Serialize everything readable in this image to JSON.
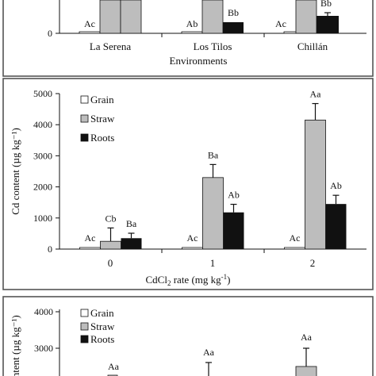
{
  "panels": {
    "top": {
      "xlabel": "Environments",
      "categories": [
        "La Serena",
        "Los Tilos",
        "Chillán"
      ],
      "letters": [
        [
          "Ac",
          "",
          ""
        ],
        [
          "Ab",
          "",
          "Bb"
        ],
        [
          "Ac",
          "",
          "Bb"
        ]
      ]
    },
    "middle": {
      "ylabel": "Cd content (µg kg⁻¹)",
      "xlabel_main": "CdCl",
      "xlabel_sub": "2",
      "xlabel_rest": " rate (mg kg",
      "xlabel_sup": "-1",
      "xlabel_end": ")",
      "legend": [
        "Grain",
        "Straw",
        "Roots"
      ],
      "yticks": [
        "0",
        "1000",
        "2000",
        "3000",
        "4000",
        "5000"
      ],
      "categories": [
        "0",
        "1",
        "2"
      ],
      "letters": [
        [
          "Ac",
          "Cb",
          "Ba"
        ],
        [
          "Ac",
          "Ba",
          "Ab"
        ],
        [
          "Ac",
          "Aa",
          "Ab"
        ]
      ]
    },
    "bottom": {
      "ylabel": "ontent (µg kg⁻¹)",
      "legend": [
        "Grain",
        "Straw",
        "Roots"
      ],
      "yticks": [
        "3000",
        "4000"
      ],
      "letters": [
        "Aa",
        "Aa",
        "Aa"
      ]
    }
  },
  "colors": {
    "grain": "#ffffff",
    "straw": "#bdbdbd",
    "roots": "#111111"
  },
  "chart_data": [
    {
      "type": "bar",
      "categories": [
        "La Serena",
        "Los Tilos",
        "Chillán"
      ],
      "series": [
        {
          "name": "Grain",
          "values": [
            15,
            15,
            15
          ]
        },
        {
          "name": "Straw",
          "values": [
            null,
            null,
            null
          ]
        },
        {
          "name": "Roots",
          "values": [
            null,
            500,
            900
          ]
        }
      ],
      "xlabel": "Environments",
      "ylabel": "",
      "yticks": [
        "0"
      ]
    },
    {
      "type": "bar",
      "categories": [
        "0",
        "1",
        "2"
      ],
      "series": [
        {
          "name": "Grain",
          "values": [
            20,
            20,
            20
          ],
          "errors": [
            0,
            0,
            0
          ]
        },
        {
          "name": "Straw",
          "values": [
            250,
            2300,
            4150
          ],
          "errors": [
            430,
            420,
            530
          ]
        },
        {
          "name": "Roots",
          "values": [
            350,
            1180,
            1450
          ],
          "errors": [
            160,
            260,
            280
          ]
        }
      ],
      "xlabel": "CdCl2 rate (mg kg-1)",
      "ylabel": "Cd content (µg kg-1)",
      "ylim": [
        0,
        5000
      ],
      "legend": "top-left"
    },
    {
      "type": "bar",
      "categories": [
        "0",
        "1",
        "2"
      ],
      "series": [
        {
          "name": "Grain",
          "values": [
            null,
            null,
            null
          ]
        },
        {
          "name": "Straw",
          "values": [
            null,
            null,
            2500
          ],
          "errors": [
            0,
            0,
            500
          ]
        }
      ],
      "ylabel": "Cd content (µg kg-1)",
      "ylim": [
        0,
        4000
      ],
      "legend": "top-left"
    }
  ]
}
